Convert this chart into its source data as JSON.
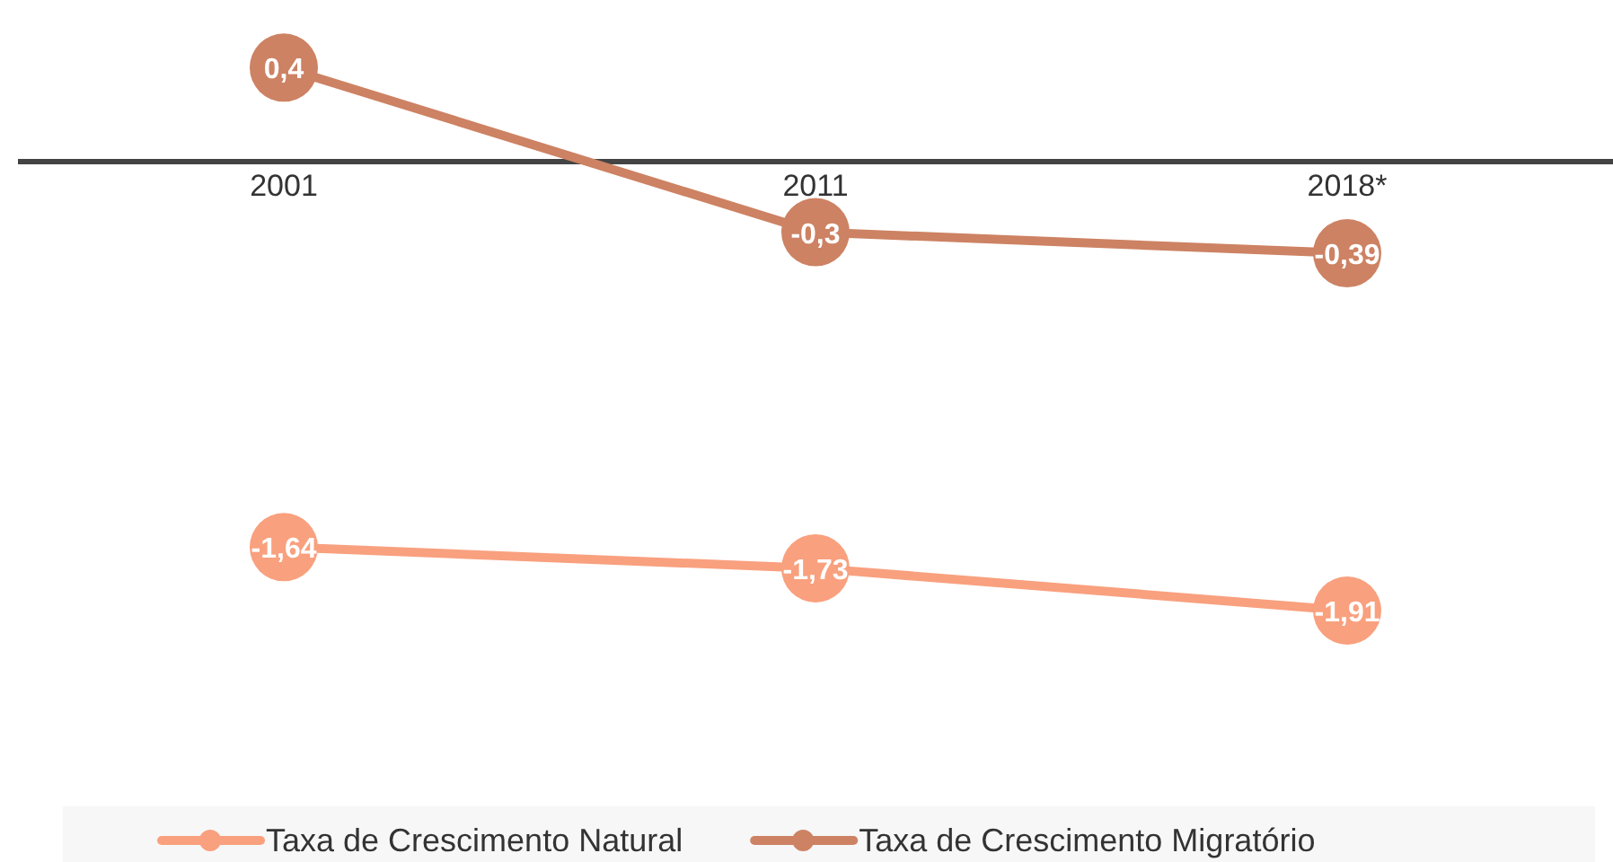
{
  "chart_data": {
    "type": "line",
    "categories": [
      "2001",
      "2011",
      "2018*"
    ],
    "series": [
      {
        "name": "Taxa de Crescimento Natural",
        "color": "#f9a07e",
        "values": [
          -1.64,
          -1.73,
          -1.91
        ],
        "value_labels": [
          "-1,64",
          "-1,73",
          "-1,91"
        ]
      },
      {
        "name": "Taxa de Crescimento Migratório",
        "color": "#cd8263",
        "values": [
          0.4,
          -0.3,
          -0.39
        ],
        "value_labels": [
          "0,4",
          "-0,3",
          "-0,39"
        ]
      }
    ],
    "marker": "circle",
    "line_style": "solid",
    "legend": "bottom"
  }
}
